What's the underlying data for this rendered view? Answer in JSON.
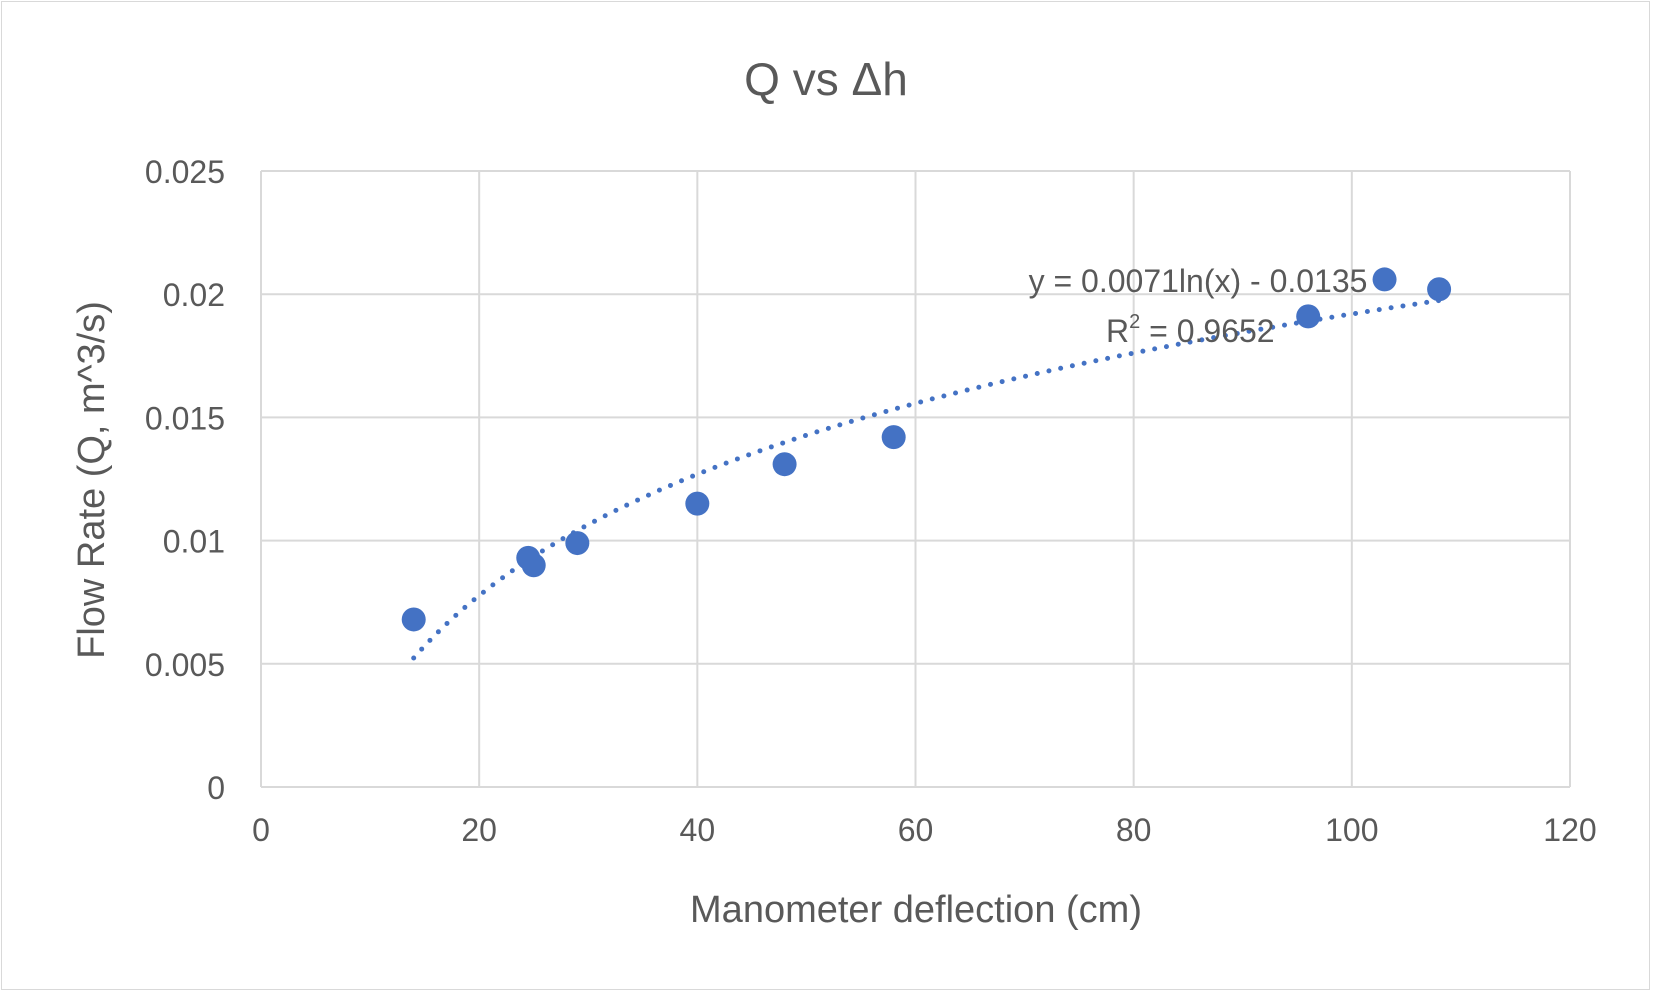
{
  "chart_data": {
    "type": "scatter",
    "title": "Q vs Δh",
    "xlabel": "Manometer deflection (cm)",
    "ylabel": "Flow Rate (Q, m^3/s)",
    "xlim": [
      0,
      120
    ],
    "ylim": [
      0,
      0.025
    ],
    "xticks": [
      "0",
      "20",
      "40",
      "60",
      "80",
      "100",
      "120"
    ],
    "yticks": [
      "0",
      "0.005",
      "0.01",
      "0.015",
      "0.02",
      "0.025"
    ],
    "grid": true,
    "legend": "none",
    "marker_color": "#4472C4",
    "points": [
      {
        "x": 14,
        "y": 0.0068
      },
      {
        "x": 24.5,
        "y": 0.0093
      },
      {
        "x": 25,
        "y": 0.009
      },
      {
        "x": 29,
        "y": 0.0099
      },
      {
        "x": 40,
        "y": 0.0115
      },
      {
        "x": 48,
        "y": 0.0131
      },
      {
        "x": 58,
        "y": 0.0142
      },
      {
        "x": 96,
        "y": 0.0191
      },
      {
        "x": 103,
        "y": 0.0206
      },
      {
        "x": 108,
        "y": 0.0202
      }
    ],
    "trendline": {
      "type": "logarithmic",
      "a": 0.0071,
      "b": -0.0135,
      "x_range": [
        14,
        108
      ],
      "style": "dotted",
      "equation": "y = 0.0071ln(x) - 0.0135",
      "r2_label": "R",
      "r2_sup": "2",
      "r2_value": " = 0.9652"
    }
  }
}
